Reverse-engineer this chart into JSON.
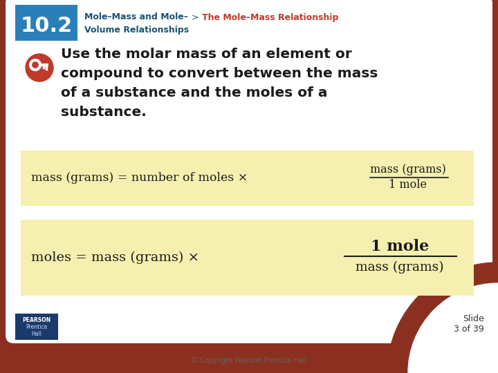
{
  "slide_number": "10.2",
  "breadcrumb_part1": "Mole–Mass and Mole–",
  "breadcrumb_part1b": "Volume Relationships",
  "breadcrumb_arrow": ">",
  "breadcrumb_part2": "The Mole–Mass Relationship",
  "main_text_lines": [
    "Use the molar mass of an element or",
    "compound to convert between the mass",
    "of a substance and the moles of a",
    "substance."
  ],
  "formula1_left": "mass (grams) = number of moles ×",
  "formula1_num": "mass (grams)",
  "formula1_den": "1 mole",
  "formula2_left": "moles = mass (grams) ×",
  "formula2_num": "1 mole",
  "formula2_den": "mass (grams)",
  "slide_label": "Slide\n3 of 39",
  "copyright": "© Copyright Pearson Prentice Hall",
  "bg_color": "#8B3020",
  "blue_box_color": "#2980b9",
  "breadcrumb1_color": "#1a5276",
  "breadcrumb2_color": "#c0392b",
  "main_text_color": "#1a1a1a",
  "formula_bg_color": "#f5f0b0",
  "formula_text_color": "#1a1a1a",
  "white_bg": "#ffffff",
  "key_icon_color": "#c0392b",
  "pearson_bg": "#1a3a6c",
  "slide_label_color": "#333333",
  "copyright_color": "#666666"
}
